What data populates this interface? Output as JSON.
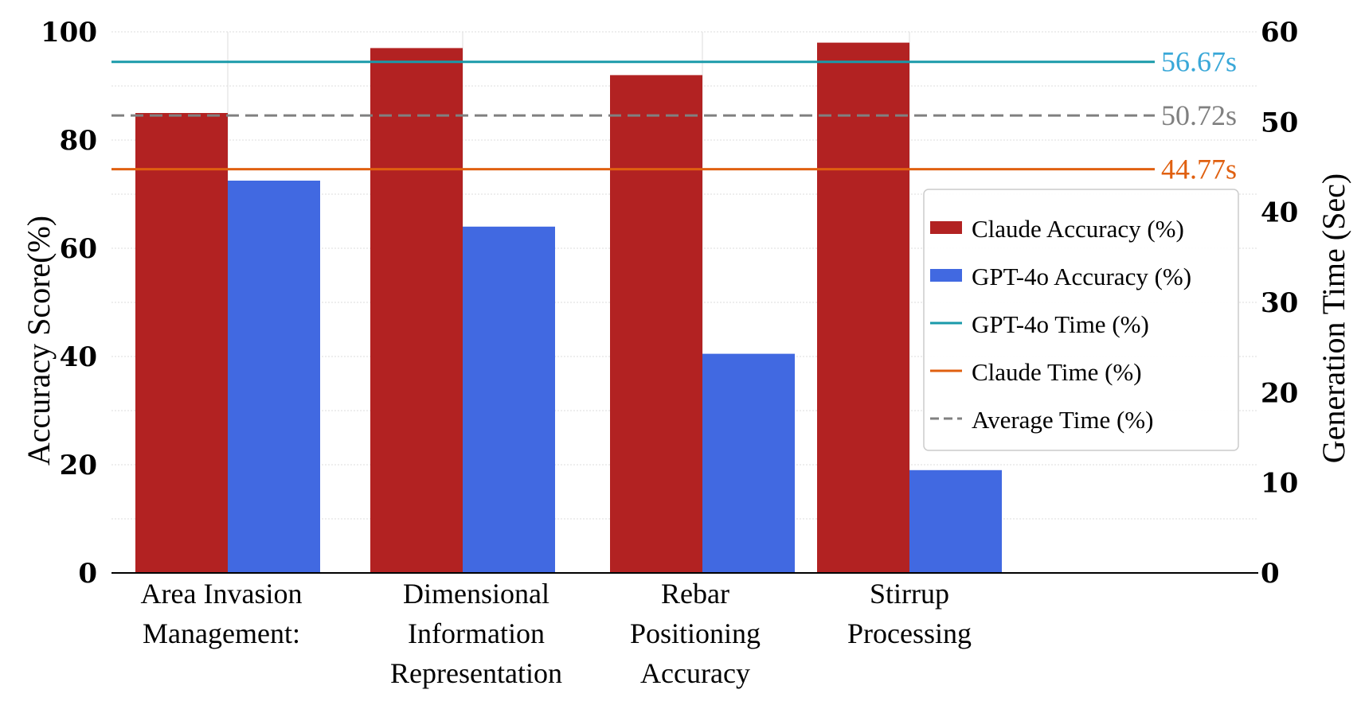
{
  "chart_data": {
    "type": "bar",
    "categories": [
      [
        "Area Invasion",
        "Management:"
      ],
      [
        "Dimensional",
        "Information",
        "Representation"
      ],
      [
        "Rebar",
        "Positioning",
        "Accuracy"
      ],
      [
        "Stirrup",
        "Processing"
      ]
    ],
    "series": [
      {
        "name": "Claude Accuracy (%)",
        "color": "#b22222",
        "values": [
          85,
          97,
          92,
          98
        ]
      },
      {
        "name": "GPT-4o Accuracy (%)",
        "color": "#4169e1",
        "values": [
          72.5,
          64,
          40.5,
          19
        ]
      }
    ],
    "reference_lines": [
      {
        "name": "GPT-4o Time (%)",
        "value": 56.67,
        "label": "56.67s",
        "color": "#1a9aaa",
        "label_color": "#3aa8d8",
        "style": "solid"
      },
      {
        "name": "Average Time (%)",
        "value": 50.72,
        "label": "50.72s",
        "color": "#808080",
        "label_color": "#808080",
        "style": "dashed"
      },
      {
        "name": "Claude Time (%)",
        "value": 44.77,
        "label": "44.77s",
        "color": "#e06010",
        "label_color": "#e06010",
        "style": "solid"
      }
    ],
    "ylabel": "Accuracy Score(%)",
    "y2label": "Generation Time (Sec)",
    "ylim": [
      0,
      100
    ],
    "y2lim": [
      0,
      60
    ],
    "yticks": [
      0,
      20,
      40,
      60,
      80,
      100
    ],
    "y2ticks": [
      0,
      10,
      20,
      30,
      40,
      50,
      60
    ],
    "grid": true,
    "legend_position": "right",
    "legend_order": [
      "Claude Accuracy (%)",
      "GPT-4o Accuracy (%)",
      "GPT-4o Time (%)",
      "Claude Time (%)",
      "Average Time (%)"
    ]
  }
}
